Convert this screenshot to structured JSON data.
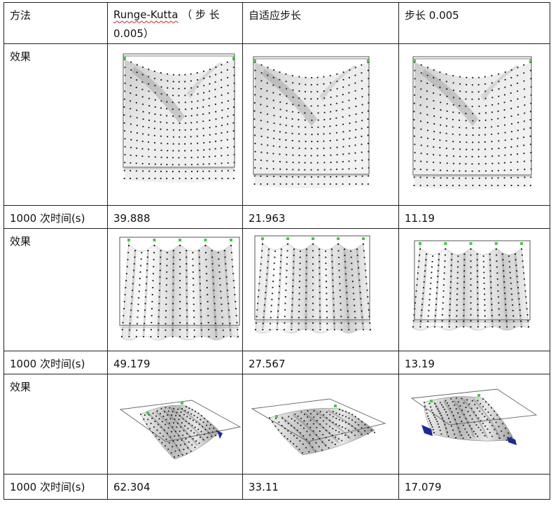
{
  "table": {
    "headers": {
      "method": "方法",
      "rk_name": "Runge-Kutta",
      "rk_step": "（ 步 长",
      "rk_step_value": "0.005）",
      "adaptive": "自适应步长",
      "fixed_step": "步长 0.005"
    },
    "row_label_effect": "效果",
    "row_label_time": "1000 次时间(s)",
    "rows": [
      {
        "case": "hanging-cloth",
        "times": [
          "39.888",
          "21.963",
          "11.19"
        ]
      },
      {
        "case": "pinned-curtain",
        "times": [
          "49.179",
          "27.567",
          "13.19"
        ]
      },
      {
        "case": "draped-cloth",
        "times": [
          "62.304",
          "33.11",
          "17.079"
        ]
      }
    ]
  },
  "colors": {
    "border": "#222222",
    "cloth_light": "#f2f2f2",
    "cloth_shade": "#8c8c8c",
    "node": "#222222",
    "anchor": "#44cc44",
    "frame": "#555555",
    "underside": "#1a2a9a",
    "spellcheck": "#dd2222"
  }
}
